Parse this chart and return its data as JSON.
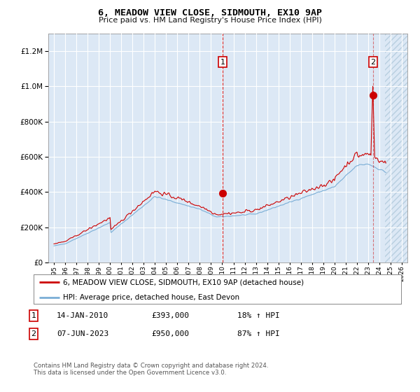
{
  "title": "6, MEADOW VIEW CLOSE, SIDMOUTH, EX10 9AP",
  "subtitle": "Price paid vs. HM Land Registry's House Price Index (HPI)",
  "legend_line1": "6, MEADOW VIEW CLOSE, SIDMOUTH, EX10 9AP (detached house)",
  "legend_line2": "HPI: Average price, detached house, East Devon",
  "footnote": "Contains HM Land Registry data © Crown copyright and database right 2024.\nThis data is licensed under the Open Government Licence v3.0.",
  "transaction1_date": "14-JAN-2010",
  "transaction1_price": "£393,000",
  "transaction1_hpi": "18% ↑ HPI",
  "transaction1_year": 2010.04,
  "transaction1_value": 393000,
  "transaction2_date": "07-JUN-2023",
  "transaction2_price": "£950,000",
  "transaction2_hpi": "87% ↑ HPI",
  "transaction2_year": 2023.44,
  "transaction2_value": 950000,
  "xmin": 1994.5,
  "xmax": 2026.5,
  "ymin": 0,
  "ymax": 1300000,
  "future_start": 2024.5,
  "bg_color": "#dce8f5",
  "hatch_color": "#b8cfe0",
  "grid_color": "#ffffff",
  "red_line_color": "#cc0000",
  "blue_line_color": "#7aaed6",
  "marker_color": "#cc0000",
  "box_edge_color": "#cc0000"
}
